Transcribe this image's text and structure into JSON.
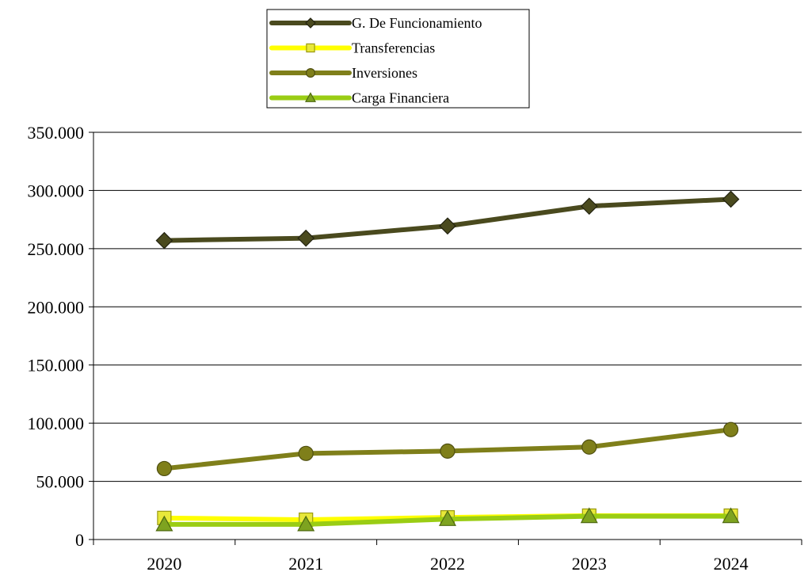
{
  "chart_data": {
    "type": "line",
    "categories": [
      "2020",
      "2021",
      "2022",
      "2023",
      "2024"
    ],
    "ylim": [
      0,
      350000
    ],
    "y_ticks": [
      0,
      50000,
      100000,
      150000,
      200000,
      250000,
      300000,
      350000
    ],
    "y_tick_labels": [
      "0",
      "50.000",
      "100.000",
      "150.000",
      "200.000",
      "250.000",
      "300.000",
      "350.000"
    ],
    "grid": true,
    "legend_position": "top-center",
    "series": [
      {
        "name": "G. De Funcionamiento",
        "values": [
          257000,
          259000,
          269500,
          286500,
          292500
        ],
        "color": "#4a4a1e",
        "marker": "diamond"
      },
      {
        "name": "Transferencias",
        "values": [
          18500,
          17000,
          19000,
          20500,
          20500
        ],
        "color": "#ffff00",
        "marker": "square"
      },
      {
        "name": "Inversiones",
        "values": [
          61000,
          74000,
          76000,
          79500,
          94500
        ],
        "color": "#7f7f1a",
        "marker": "circle"
      },
      {
        "name": "Carga Financiera",
        "values": [
          13000,
          13000,
          17500,
          20000,
          20000
        ],
        "color": "#9acd14",
        "marker": "triangle"
      }
    ]
  }
}
